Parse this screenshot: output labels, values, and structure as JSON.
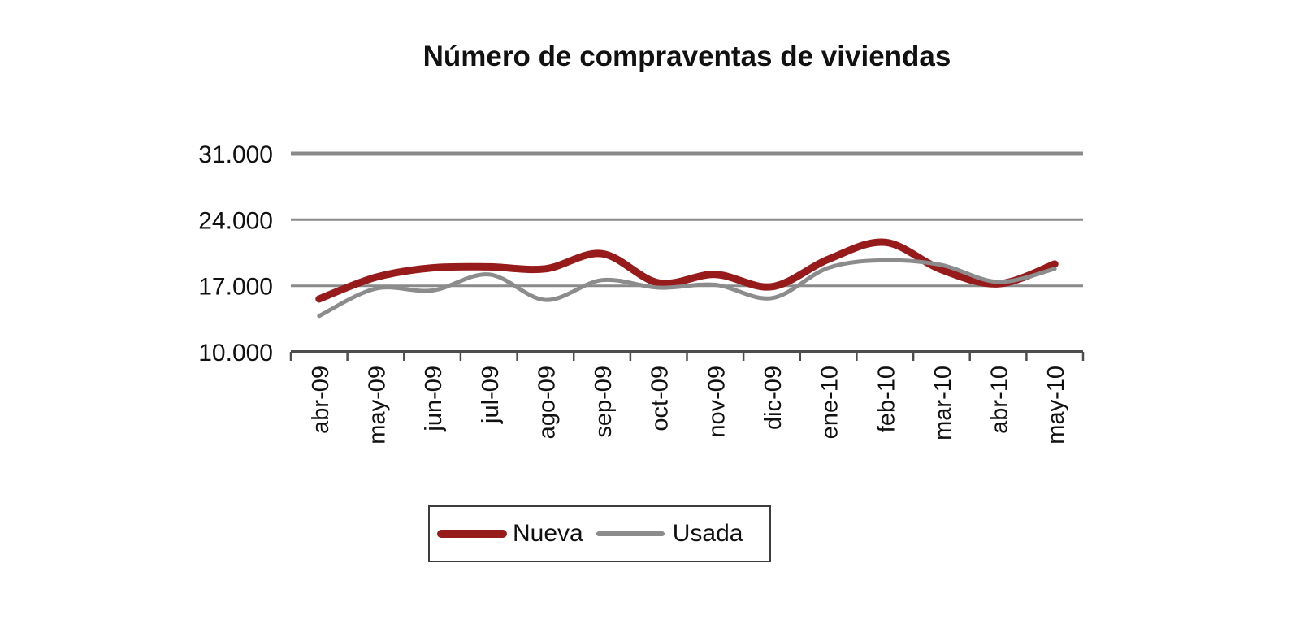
{
  "chart_data": {
    "type": "line",
    "title": "Número de compraventas de viviendas",
    "categories": [
      "abr-09",
      "may-09",
      "jun-09",
      "jul-09",
      "ago-09",
      "sep-09",
      "oct-09",
      "nov-09",
      "dic-09",
      "ene-10",
      "feb-10",
      "mar-10",
      "abr-10",
      "may-10"
    ],
    "series": [
      {
        "name": "Nueva",
        "color": "#981b1b",
        "stroke_width": 9,
        "values": [
          15600,
          17900,
          18900,
          19000,
          18800,
          20400,
          17300,
          18200,
          16900,
          19800,
          21600,
          18700,
          17200,
          19300
        ]
      },
      {
        "name": "Usada",
        "color": "#8c8c8c",
        "stroke_width": 5,
        "values": [
          13800,
          16700,
          16500,
          18200,
          15500,
          17600,
          16800,
          17100,
          15700,
          18900,
          19700,
          19200,
          17400,
          18800
        ]
      }
    ],
    "ylim": [
      10000,
      31000
    ],
    "y_ticks": [
      31000,
      24000,
      17000,
      10000
    ],
    "y_tick_labels": [
      "31.000",
      "24.000",
      "17.000",
      "10.000"
    ],
    "grid": "horizontal",
    "x_tick_rotation": -90,
    "legend_position": "bottom",
    "gridline_color": "#8a8a8a",
    "axis_color": "#4d4d4d",
    "text_color": "#111111",
    "background": "#ffffff"
  }
}
